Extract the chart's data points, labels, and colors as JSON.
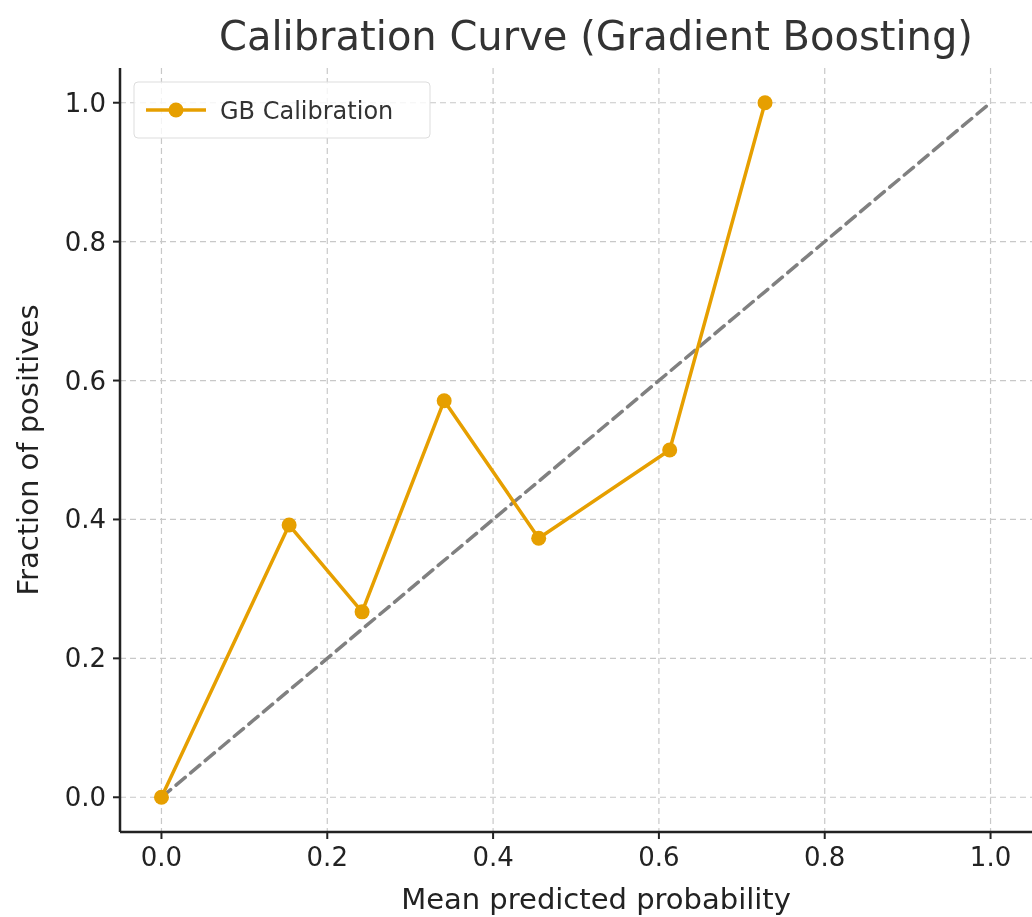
{
  "chart_data": {
    "type": "line",
    "title": "Calibration Curve (Gradient Boosting)",
    "xlabel": "Mean predicted probability",
    "ylabel": "Fraction of positives",
    "series": [
      {
        "name": "GB Calibration",
        "color": "#e69f00",
        "x": [
          0.0,
          0.154,
          0.242,
          0.341,
          0.455,
          0.613,
          0.728
        ],
        "values": [
          0.0,
          0.392,
          0.267,
          0.571,
          0.373,
          0.5,
          1.0
        ],
        "marker": "circle",
        "line_style": "solid"
      },
      {
        "color": "#808080",
        "x": [
          0.0,
          1.0
        ],
        "values": [
          0.0,
          1.0
        ],
        "marker": "none",
        "line_style": "dashed"
      }
    ],
    "xlim": [
      -0.05,
      1.05
    ],
    "ylim": [
      -0.05,
      1.05
    ],
    "xticks": [
      {
        "value": 0,
        "label": "0.0"
      },
      {
        "value": 0.2,
        "label": "0.2"
      },
      {
        "value": 0.4,
        "label": "0.4"
      },
      {
        "value": 0.6,
        "label": "0.6"
      },
      {
        "value": 0.8,
        "label": "0.8"
      },
      {
        "value": 1,
        "label": "1.0"
      }
    ],
    "yticks": [
      {
        "value": 0,
        "label": "0.0"
      },
      {
        "value": 0.2,
        "label": "0.2"
      },
      {
        "value": 0.4,
        "label": "0.4"
      },
      {
        "value": 0.6,
        "label": "0.6"
      },
      {
        "value": 0.8,
        "label": "0.8"
      },
      {
        "value": 1,
        "label": "1.0"
      }
    ],
    "grid": true,
    "legend": "top left"
  }
}
